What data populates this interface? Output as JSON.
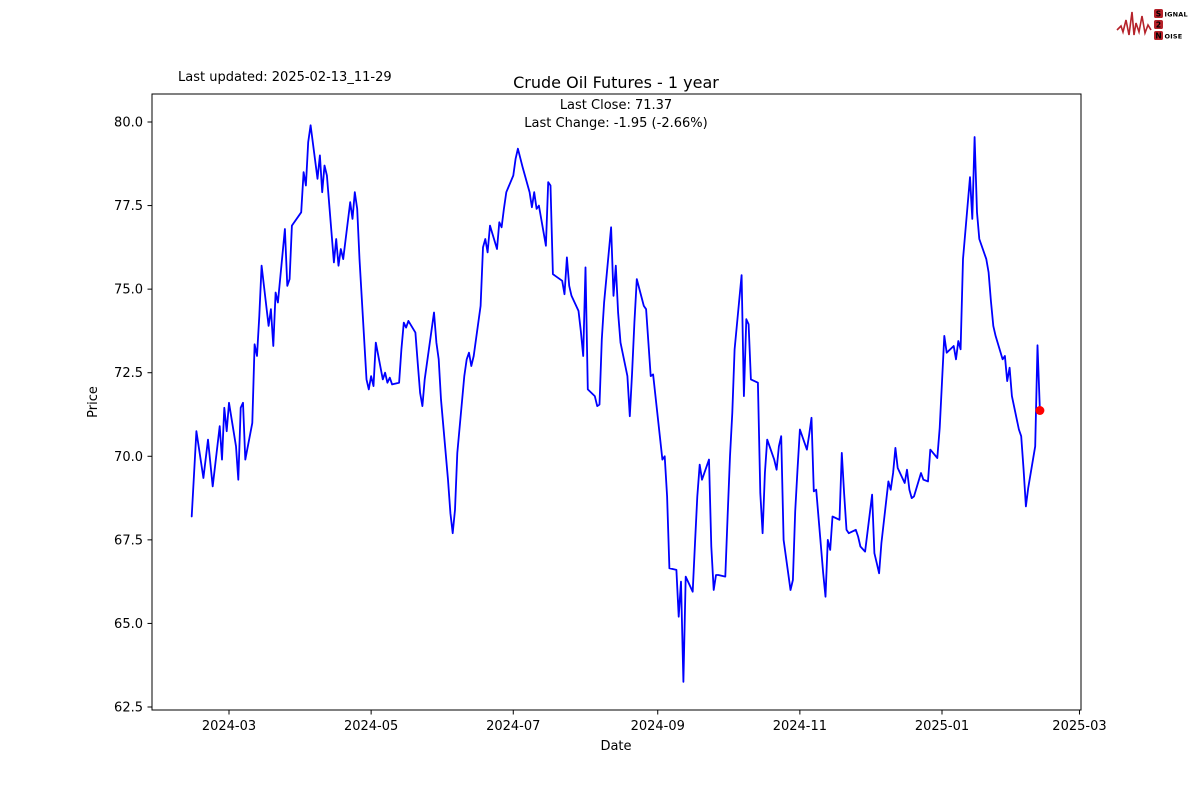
{
  "page": {
    "background": "#ffffff"
  },
  "header": {
    "last_updated": "Last updated: 2025-02-13_11-29",
    "logo": {
      "word1": "S",
      "word1_rest": "IGNAL",
      "word2": "2",
      "word3": "N",
      "word3_rest": "OISE",
      "color": "#b5222a"
    }
  },
  "chart_data": {
    "type": "line",
    "title": "Crude Oil Futures - 1 year",
    "subtitle_lines": [
      "Last Close: 71.37",
      "Last Change: -1.95 (-2.66%)"
    ],
    "xlabel": "Date",
    "ylabel": "Price",
    "last_close": 71.37,
    "last_change": -1.95,
    "last_change_pct": -2.66,
    "line_color": "#0000ff",
    "last_point_color": "#ff0000",
    "grid": false,
    "legend": "none",
    "ylim": [
      62.4,
      80.75
    ],
    "xlim": [
      "2024-01-27",
      "2025-03-02"
    ],
    "y_ticks": [
      62.5,
      65.0,
      67.5,
      70.0,
      72.5,
      75.0,
      77.5,
      80.0
    ],
    "y_tick_labels": [
      "62.5",
      "65.0",
      "67.5",
      "70.0",
      "72.5",
      "75.0",
      "77.5",
      "80.0"
    ],
    "x_ticks": [
      "2024-03-01",
      "2024-05-01",
      "2024-07-01",
      "2024-09-01",
      "2024-11-01",
      "2025-01-01",
      "2025-03-01"
    ],
    "x_tick_labels": [
      "2024-03",
      "2024-05",
      "2024-07",
      "2024-09",
      "2024-11",
      "2025-01",
      "2025-03"
    ],
    "series": [
      {
        "name": "price",
        "points": [
          [
            "2024-02-14",
            68.2
          ],
          [
            "2024-02-16",
            70.75
          ],
          [
            "2024-02-19",
            69.35
          ],
          [
            "2024-02-21",
            70.5
          ],
          [
            "2024-02-23",
            69.1
          ],
          [
            "2024-02-26",
            70.9
          ],
          [
            "2024-02-27",
            69.9
          ],
          [
            "2024-02-28",
            71.45
          ],
          [
            "2024-02-29",
            70.75
          ],
          [
            "2024-03-01",
            71.6
          ],
          [
            "2024-03-04",
            70.3
          ],
          [
            "2024-03-05",
            69.3
          ],
          [
            "2024-03-06",
            71.45
          ],
          [
            "2024-03-07",
            71.6
          ],
          [
            "2024-03-08",
            69.9
          ],
          [
            "2024-03-11",
            71.0
          ],
          [
            "2024-03-12",
            73.35
          ],
          [
            "2024-03-13",
            73.0
          ],
          [
            "2024-03-14",
            74.2
          ],
          [
            "2024-03-15",
            75.7
          ],
          [
            "2024-03-18",
            73.9
          ],
          [
            "2024-03-19",
            74.4
          ],
          [
            "2024-03-20",
            73.3
          ],
          [
            "2024-03-21",
            74.9
          ],
          [
            "2024-03-22",
            74.6
          ],
          [
            "2024-03-25",
            76.8
          ],
          [
            "2024-03-26",
            75.1
          ],
          [
            "2024-03-27",
            75.3
          ],
          [
            "2024-03-28",
            76.9
          ],
          [
            "2024-04-01",
            77.3
          ],
          [
            "2024-04-02",
            78.5
          ],
          [
            "2024-04-03",
            78.1
          ],
          [
            "2024-04-04",
            79.4
          ],
          [
            "2024-04-05",
            79.9
          ],
          [
            "2024-04-08",
            78.3
          ],
          [
            "2024-04-09",
            79.0
          ],
          [
            "2024-04-10",
            77.9
          ],
          [
            "2024-04-11",
            78.7
          ],
          [
            "2024-04-12",
            78.4
          ],
          [
            "2024-04-15",
            75.8
          ],
          [
            "2024-04-16",
            76.5
          ],
          [
            "2024-04-17",
            75.7
          ],
          [
            "2024-04-18",
            76.2
          ],
          [
            "2024-04-19",
            75.9
          ],
          [
            "2024-04-22",
            77.6
          ],
          [
            "2024-04-23",
            77.1
          ],
          [
            "2024-04-24",
            77.9
          ],
          [
            "2024-04-25",
            77.4
          ],
          [
            "2024-04-26",
            75.9
          ],
          [
            "2024-04-29",
            72.3
          ],
          [
            "2024-04-30",
            72.0
          ],
          [
            "2024-05-01",
            72.4
          ],
          [
            "2024-05-02",
            72.1
          ],
          [
            "2024-05-03",
            73.4
          ],
          [
            "2024-05-06",
            72.3
          ],
          [
            "2024-05-07",
            72.5
          ],
          [
            "2024-05-08",
            72.2
          ],
          [
            "2024-05-09",
            72.35
          ],
          [
            "2024-05-10",
            72.15
          ],
          [
            "2024-05-13",
            72.2
          ],
          [
            "2024-05-14",
            73.2
          ],
          [
            "2024-05-15",
            74.0
          ],
          [
            "2024-05-16",
            73.85
          ],
          [
            "2024-05-17",
            74.05
          ],
          [
            "2024-05-20",
            73.7
          ],
          [
            "2024-05-21",
            72.8
          ],
          [
            "2024-05-22",
            71.9
          ],
          [
            "2024-05-23",
            71.5
          ],
          [
            "2024-05-24",
            72.3
          ],
          [
            "2024-05-28",
            74.3
          ],
          [
            "2024-05-29",
            73.4
          ],
          [
            "2024-05-30",
            72.9
          ],
          [
            "2024-05-31",
            71.7
          ],
          [
            "2024-06-03",
            69.3
          ],
          [
            "2024-06-04",
            68.3
          ],
          [
            "2024-06-05",
            67.7
          ],
          [
            "2024-06-06",
            68.4
          ],
          [
            "2024-06-07",
            70.1
          ],
          [
            "2024-06-10",
            72.4
          ],
          [
            "2024-06-11",
            72.9
          ],
          [
            "2024-06-12",
            73.1
          ],
          [
            "2024-06-13",
            72.7
          ],
          [
            "2024-06-14",
            73.0
          ],
          [
            "2024-06-17",
            74.5
          ],
          [
            "2024-06-18",
            76.25
          ],
          [
            "2024-06-19",
            76.5
          ],
          [
            "2024-06-20",
            76.1
          ],
          [
            "2024-06-21",
            76.9
          ],
          [
            "2024-06-24",
            76.2
          ],
          [
            "2024-06-25",
            77.0
          ],
          [
            "2024-06-26",
            76.85
          ],
          [
            "2024-06-27",
            77.4
          ],
          [
            "2024-06-28",
            77.9
          ],
          [
            "2024-07-01",
            78.4
          ],
          [
            "2024-07-02",
            78.9
          ],
          [
            "2024-07-03",
            79.2
          ],
          [
            "2024-07-05",
            78.65
          ],
          [
            "2024-07-08",
            77.9
          ],
          [
            "2024-07-09",
            77.45
          ],
          [
            "2024-07-10",
            77.9
          ],
          [
            "2024-07-11",
            77.4
          ],
          [
            "2024-07-12",
            77.5
          ],
          [
            "2024-07-15",
            76.3
          ],
          [
            "2024-07-16",
            78.2
          ],
          [
            "2024-07-17",
            78.1
          ],
          [
            "2024-07-18",
            75.45
          ],
          [
            "2024-07-19",
            75.4
          ],
          [
            "2024-07-22",
            75.25
          ],
          [
            "2024-07-23",
            74.85
          ],
          [
            "2024-07-24",
            75.95
          ],
          [
            "2024-07-25",
            75.1
          ],
          [
            "2024-07-26",
            74.8
          ],
          [
            "2024-07-29",
            74.35
          ],
          [
            "2024-07-30",
            73.75
          ],
          [
            "2024-07-31",
            73.0
          ],
          [
            "2024-08-01",
            75.65
          ],
          [
            "2024-08-02",
            72.0
          ],
          [
            "2024-08-05",
            71.8
          ],
          [
            "2024-08-06",
            71.5
          ],
          [
            "2024-08-07",
            71.55
          ],
          [
            "2024-08-08",
            73.5
          ],
          [
            "2024-08-09",
            74.6
          ],
          [
            "2024-08-12",
            76.85
          ],
          [
            "2024-08-13",
            74.8
          ],
          [
            "2024-08-14",
            75.7
          ],
          [
            "2024-08-15",
            74.3
          ],
          [
            "2024-08-16",
            73.4
          ],
          [
            "2024-08-19",
            72.4
          ],
          [
            "2024-08-20",
            71.2
          ],
          [
            "2024-08-21",
            72.5
          ],
          [
            "2024-08-22",
            74.0
          ],
          [
            "2024-08-23",
            75.3
          ],
          [
            "2024-08-26",
            74.5
          ],
          [
            "2024-08-27",
            74.4
          ],
          [
            "2024-08-28",
            73.4
          ],
          [
            "2024-08-29",
            72.4
          ],
          [
            "2024-08-30",
            72.45
          ],
          [
            "2024-09-03",
            69.9
          ],
          [
            "2024-09-04",
            70.0
          ],
          [
            "2024-09-05",
            68.8
          ],
          [
            "2024-09-06",
            66.65
          ],
          [
            "2024-09-09",
            66.6
          ],
          [
            "2024-09-10",
            65.2
          ],
          [
            "2024-09-11",
            66.25
          ],
          [
            "2024-09-12",
            63.25
          ],
          [
            "2024-09-13",
            66.4
          ],
          [
            "2024-09-16",
            65.95
          ],
          [
            "2024-09-17",
            67.4
          ],
          [
            "2024-09-18",
            68.8
          ],
          [
            "2024-09-19",
            69.75
          ],
          [
            "2024-09-20",
            69.3
          ],
          [
            "2024-09-23",
            69.9
          ],
          [
            "2024-09-24",
            67.3
          ],
          [
            "2024-09-25",
            66.0
          ],
          [
            "2024-09-26",
            66.45
          ],
          [
            "2024-09-27",
            66.45
          ],
          [
            "2024-09-30",
            66.4
          ],
          [
            "2024-10-01",
            68.2
          ],
          [
            "2024-10-02",
            70.0
          ],
          [
            "2024-10-03",
            71.3
          ],
          [
            "2024-10-04",
            73.2
          ],
          [
            "2024-10-07",
            75.42
          ],
          [
            "2024-10-08",
            71.8
          ],
          [
            "2024-10-09",
            74.1
          ],
          [
            "2024-10-10",
            73.95
          ],
          [
            "2024-10-11",
            72.3
          ],
          [
            "2024-10-14",
            72.2
          ],
          [
            "2024-10-15",
            68.9
          ],
          [
            "2024-10-16",
            67.7
          ],
          [
            "2024-10-17",
            69.5
          ],
          [
            "2024-10-18",
            70.5
          ],
          [
            "2024-10-21",
            69.9
          ],
          [
            "2024-10-22",
            69.6
          ],
          [
            "2024-10-23",
            70.3
          ],
          [
            "2024-10-24",
            70.6
          ],
          [
            "2024-10-25",
            67.5
          ],
          [
            "2024-10-28",
            66.0
          ],
          [
            "2024-10-29",
            66.3
          ],
          [
            "2024-10-30",
            68.35
          ],
          [
            "2024-10-31",
            69.6
          ],
          [
            "2024-11-01",
            70.8
          ],
          [
            "2024-11-04",
            70.2
          ],
          [
            "2024-11-05",
            70.65
          ],
          [
            "2024-11-06",
            71.15
          ],
          [
            "2024-11-07",
            68.95
          ],
          [
            "2024-11-08",
            69.0
          ],
          [
            "2024-11-11",
            66.5
          ],
          [
            "2024-11-12",
            65.8
          ],
          [
            "2024-11-13",
            67.5
          ],
          [
            "2024-11-14",
            67.2
          ],
          [
            "2024-11-15",
            68.2
          ],
          [
            "2024-11-18",
            68.1
          ],
          [
            "2024-11-19",
            70.1
          ],
          [
            "2024-11-20",
            68.9
          ],
          [
            "2024-11-21",
            67.8
          ],
          [
            "2024-11-22",
            67.7
          ],
          [
            "2024-11-25",
            67.8
          ],
          [
            "2024-11-26",
            67.6
          ],
          [
            "2024-11-27",
            67.3
          ],
          [
            "2024-11-29",
            67.15
          ],
          [
            "2024-12-02",
            68.85
          ],
          [
            "2024-12-03",
            67.1
          ],
          [
            "2024-12-04",
            66.8
          ],
          [
            "2024-12-05",
            66.5
          ],
          [
            "2024-12-06",
            67.4
          ],
          [
            "2024-12-09",
            69.25
          ],
          [
            "2024-12-10",
            69.0
          ],
          [
            "2024-12-11",
            69.5
          ],
          [
            "2024-12-12",
            70.25
          ],
          [
            "2024-12-13",
            69.65
          ],
          [
            "2024-12-16",
            69.2
          ],
          [
            "2024-12-17",
            69.6
          ],
          [
            "2024-12-18",
            69.0
          ],
          [
            "2024-12-19",
            68.75
          ],
          [
            "2024-12-20",
            68.8
          ],
          [
            "2024-12-23",
            69.5
          ],
          [
            "2024-12-24",
            69.3
          ],
          [
            "2024-12-26",
            69.25
          ],
          [
            "2024-12-27",
            70.2
          ],
          [
            "2024-12-30",
            69.95
          ],
          [
            "2024-12-31",
            70.85
          ],
          [
            "2025-01-02",
            73.6
          ],
          [
            "2025-01-03",
            73.1
          ],
          [
            "2025-01-06",
            73.3
          ],
          [
            "2025-01-07",
            72.9
          ],
          [
            "2025-01-08",
            73.45
          ],
          [
            "2025-01-09",
            73.2
          ],
          [
            "2025-01-10",
            75.9
          ],
          [
            "2025-01-13",
            78.35
          ],
          [
            "2025-01-14",
            77.1
          ],
          [
            "2025-01-15",
            79.55
          ],
          [
            "2025-01-16",
            77.3
          ],
          [
            "2025-01-17",
            76.5
          ],
          [
            "2025-01-20",
            75.9
          ],
          [
            "2025-01-21",
            75.5
          ],
          [
            "2025-01-22",
            74.65
          ],
          [
            "2025-01-23",
            73.9
          ],
          [
            "2025-01-24",
            73.6
          ],
          [
            "2025-01-27",
            72.9
          ],
          [
            "2025-01-28",
            73.0
          ],
          [
            "2025-01-29",
            72.25
          ],
          [
            "2025-01-30",
            72.65
          ],
          [
            "2025-01-31",
            71.8
          ],
          [
            "2025-02-03",
            70.8
          ],
          [
            "2025-02-04",
            70.6
          ],
          [
            "2025-02-05",
            69.6
          ],
          [
            "2025-02-06",
            68.5
          ],
          [
            "2025-02-07",
            69.05
          ],
          [
            "2025-02-10",
            70.3
          ],
          [
            "2025-02-11",
            73.32
          ],
          [
            "2025-02-12",
            71.37
          ]
        ]
      }
    ]
  }
}
